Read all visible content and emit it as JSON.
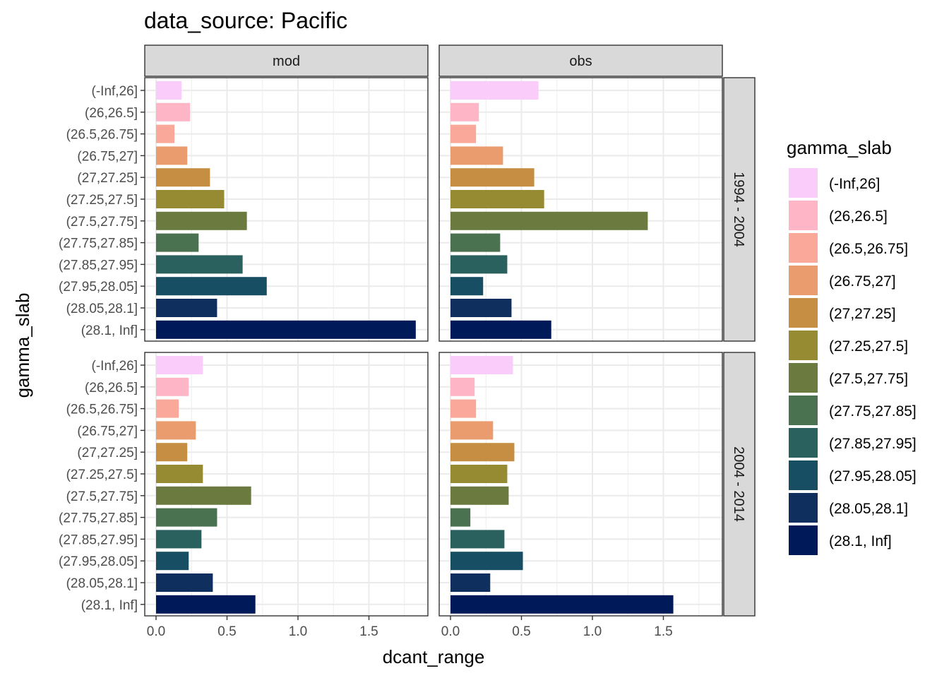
{
  "chart_data": {
    "type": "bar",
    "orientation": "horizontal",
    "title": "data_source: Pacific",
    "xlabel": "dcant_range",
    "ylabel": "gamma_slab",
    "xlim": [
      0,
      1.9
    ],
    "x_ticks": [
      "0.0",
      "0.5",
      "1.0",
      "1.5"
    ],
    "x_tick_values": [
      0,
      0.5,
      1.0,
      1.5
    ],
    "grid": true,
    "legend_title": "gamma_slab",
    "legend_position": "right",
    "categories": [
      "(-Inf,26]",
      "(26,26.5]",
      "(26.5,26.75]",
      "(26.75,27]",
      "(27,27.25]",
      "(27.25,27.5]",
      "(27.5,27.75]",
      "(27.75,27.85]",
      "(27.85,27.95]",
      "(27.95,28.05]",
      "(28.05,28.1]",
      "(28.1, Inf]"
    ],
    "colors": [
      "#F9CCF9",
      "#FEB6C6",
      "#FAA89A",
      "#EB9C6E",
      "#C68E42",
      "#968A32",
      "#6B7B3F",
      "#4A7150",
      "#2A605E",
      "#174E64",
      "#0F305E",
      "#001959"
    ],
    "facet_columns": [
      "mod",
      "obs"
    ],
    "facet_rows": [
      "1994 - 2004",
      "2004 - 2014"
    ],
    "panels": [
      {
        "row": "1994 - 2004",
        "col": "mod",
        "values": [
          0.18,
          0.24,
          0.13,
          0.22,
          0.38,
          0.48,
          0.64,
          0.3,
          0.61,
          0.78,
          0.43,
          1.83
        ]
      },
      {
        "row": "1994 - 2004",
        "col": "obs",
        "values": [
          0.62,
          0.2,
          0.18,
          0.37,
          0.59,
          0.66,
          1.39,
          0.35,
          0.4,
          0.23,
          0.43,
          0.71
        ]
      },
      {
        "row": "2004 - 2014",
        "col": "mod",
        "values": [
          0.33,
          0.23,
          0.16,
          0.28,
          0.22,
          0.33,
          0.67,
          0.43,
          0.32,
          0.23,
          0.4,
          0.7
        ]
      },
      {
        "row": "2004 - 2014",
        "col": "obs",
        "values": [
          0.44,
          0.17,
          0.18,
          0.3,
          0.45,
          0.4,
          0.41,
          0.14,
          0.38,
          0.51,
          0.28,
          1.57
        ]
      }
    ]
  }
}
